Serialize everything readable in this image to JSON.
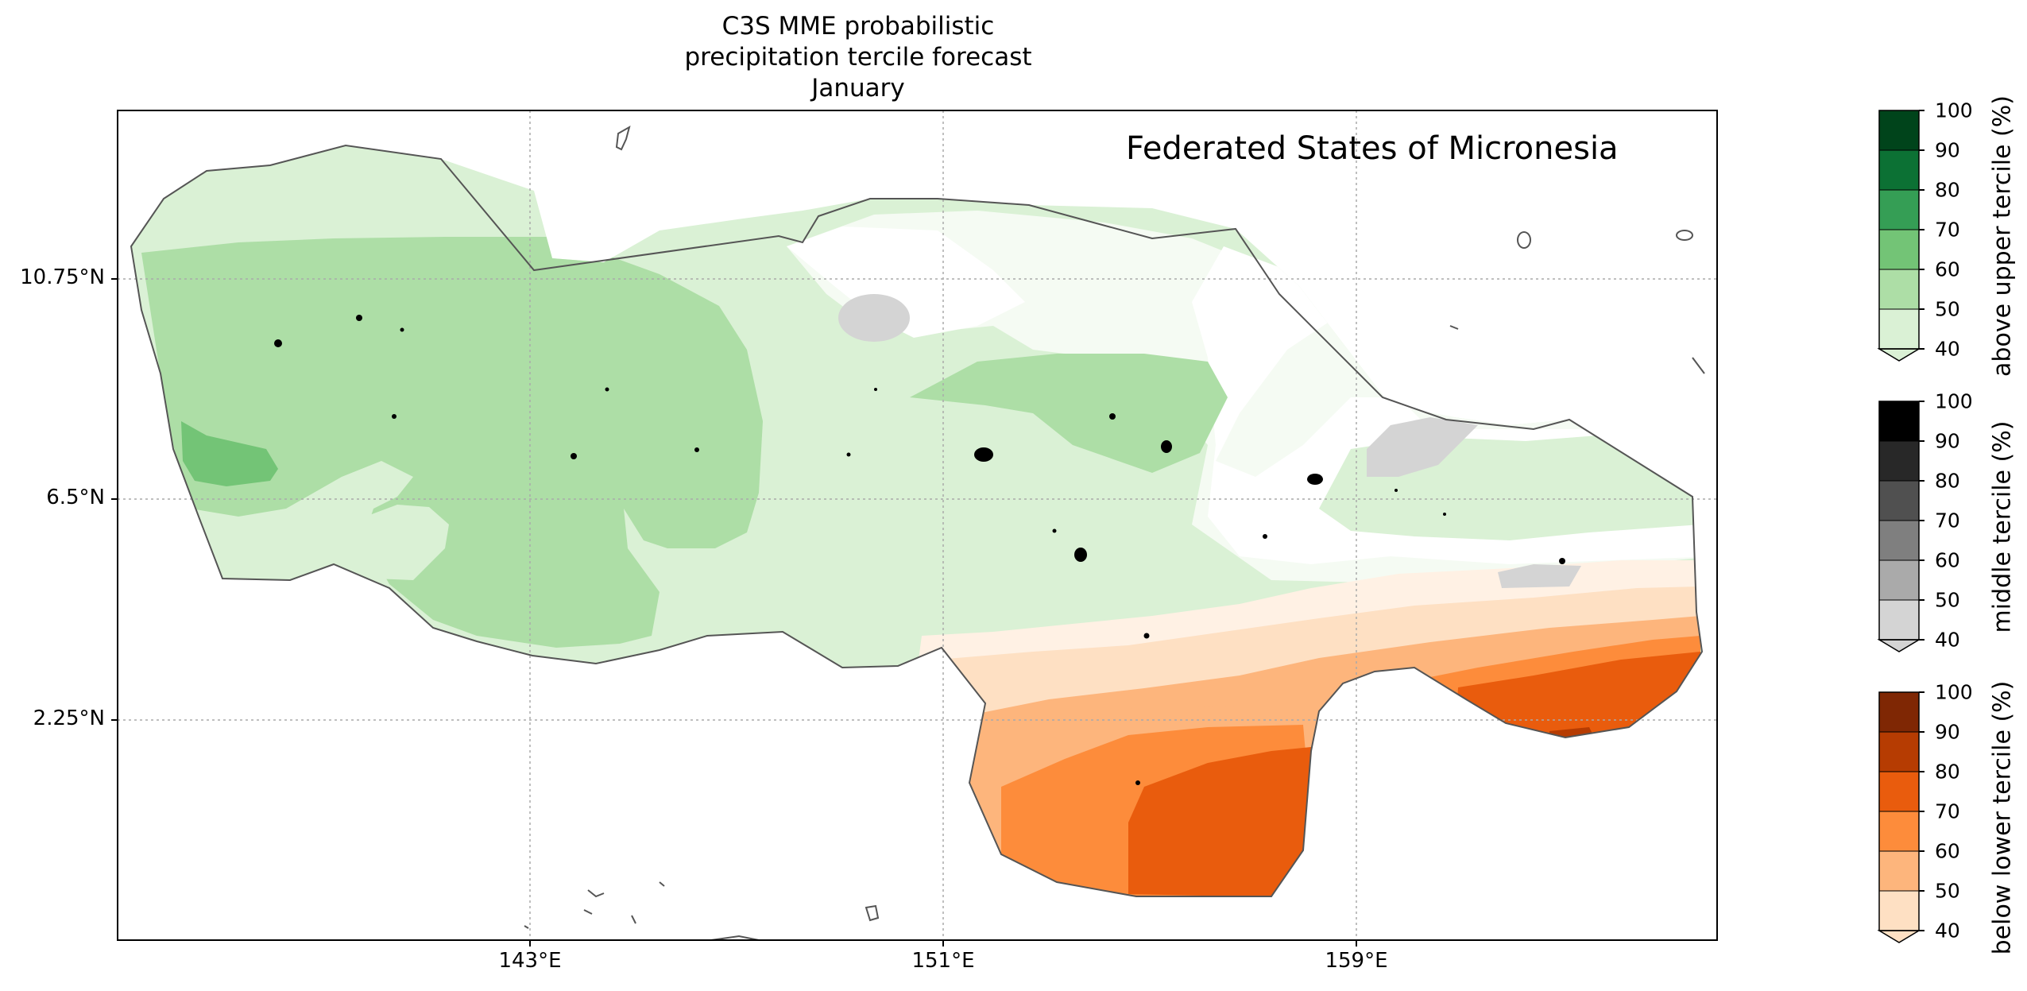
{
  "title": {
    "line1": "C3S MME probabilistic",
    "line2": "precipitation tercile forecast",
    "line3": "January"
  },
  "map": {
    "region_label": "Federated States of Micronesia",
    "x_ticks": [
      "143°E",
      "151°E",
      "159°E"
    ],
    "y_ticks": [
      "10.75°N",
      "6.5°N",
      "2.25°N"
    ],
    "gridlines": "dotted"
  },
  "colorbars": [
    {
      "label": "above upper tercile (%)",
      "ticks": [
        "100",
        "90",
        "80",
        "70",
        "60",
        "50",
        "40"
      ],
      "colors": [
        "#00441b",
        "#0c7134",
        "#359e55",
        "#73c476",
        "#addea6",
        "#daf1d5"
      ]
    },
    {
      "label": "middle tercile (%)",
      "ticks": [
        "100",
        "90",
        "80",
        "70",
        "60",
        "50",
        "40"
      ],
      "colors": [
        "#000000",
        "#282828",
        "#505050",
        "#7f7f7f",
        "#aaaaaa",
        "#d4d4d4"
      ]
    },
    {
      "label": "below lower tercile (%)",
      "ticks": [
        "100",
        "90",
        "80",
        "70",
        "60",
        "50",
        "40"
      ],
      "colors": [
        "#7f2704",
        "#b63c02",
        "#e95c0d",
        "#fd8c3b",
        "#fdb57c",
        "#fee0c3"
      ]
    }
  ]
}
